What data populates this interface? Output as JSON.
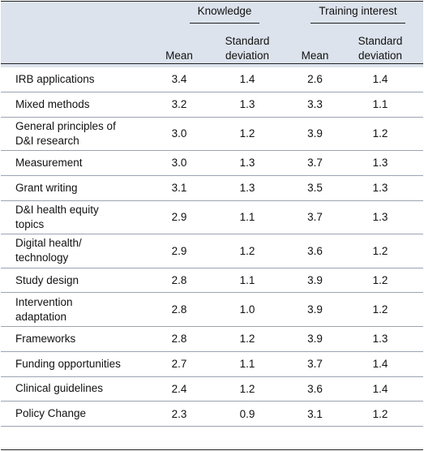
{
  "header": {
    "group1": "Knowledge",
    "group2": "Training interest",
    "mean1": "Mean",
    "sd1": "Standard deviation",
    "mean2": "Mean",
    "sd2": "Standard deviation"
  },
  "rows": [
    {
      "label": "IRB applications",
      "k_mean": "3.4",
      "k_sd": "1.4",
      "t_mean": "2.6",
      "t_sd": "1.4"
    },
    {
      "label": "Mixed methods",
      "k_mean": "3.2",
      "k_sd": "1.3",
      "t_mean": "3.3",
      "t_sd": "1.1"
    },
    {
      "label": "General principles of D&I research",
      "k_mean": "3.0",
      "k_sd": "1.2",
      "t_mean": "3.9",
      "t_sd": "1.2"
    },
    {
      "label": "Measurement",
      "k_mean": "3.0",
      "k_sd": "1.3",
      "t_mean": "3.7",
      "t_sd": "1.3"
    },
    {
      "label": "Grant writing",
      "k_mean": "3.1",
      "k_sd": "1.3",
      "t_mean": "3.5",
      "t_sd": "1.3"
    },
    {
      "label": "D&I health equity topics",
      "k_mean": "2.9",
      "k_sd": "1.1",
      "t_mean": "3.7",
      "t_sd": "1.3"
    },
    {
      "label": "Digital health/ technology",
      "k_mean": "2.9",
      "k_sd": "1.2",
      "t_mean": "3.6",
      "t_sd": "1.2"
    },
    {
      "label": "Study design",
      "k_mean": "2.8",
      "k_sd": "1.1",
      "t_mean": "3.9",
      "t_sd": "1.2"
    },
    {
      "label": "Intervention adaptation",
      "k_mean": "2.8",
      "k_sd": "1.0",
      "t_mean": "3.9",
      "t_sd": "1.2"
    },
    {
      "label": "Frameworks",
      "k_mean": "2.8",
      "k_sd": "1.2",
      "t_mean": "3.9",
      "t_sd": "1.3"
    },
    {
      "label": "Funding opportunities",
      "k_mean": "2.7",
      "k_sd": "1.1",
      "t_mean": "3.7",
      "t_sd": "1.4"
    },
    {
      "label": "Clinical guidelines",
      "k_mean": "2.4",
      "k_sd": "1.2",
      "t_mean": "3.6",
      "t_sd": "1.4"
    },
    {
      "label": "Policy Change",
      "k_mean": "2.3",
      "k_sd": "0.9",
      "t_mean": "3.1",
      "t_sd": "1.2"
    }
  ]
}
